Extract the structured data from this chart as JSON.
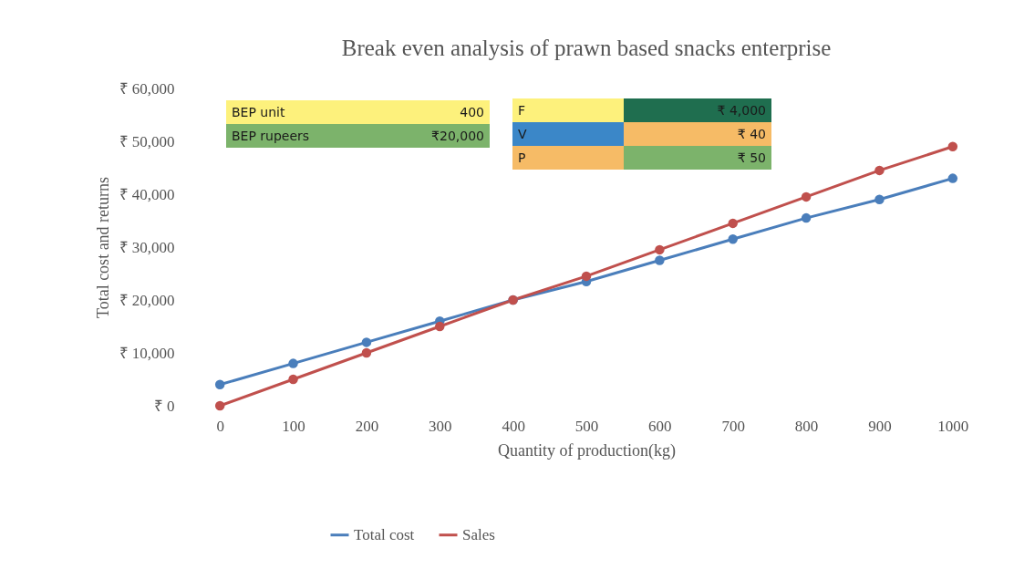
{
  "chart_data": {
    "type": "line",
    "title": "Break even analysis of prawn based snacks enterprise",
    "xlabel": "Quantity of production(kg)",
    "ylabel": "Total cost and returns",
    "categories": [
      "0",
      "100",
      "200",
      "300",
      "400",
      "500",
      "600",
      "700",
      "800",
      "900",
      "1000"
    ],
    "series": [
      {
        "name": "Total cost",
        "color": "#4a7ebb",
        "values": [
          4000,
          8000,
          12000,
          16000,
          20000,
          23500,
          27500,
          31500,
          35500,
          39000,
          43000
        ]
      },
      {
        "name": "Sales",
        "color": "#c0504d",
        "values": [
          0,
          5000,
          10000,
          15000,
          20000,
          24500,
          29500,
          34500,
          39500,
          44500,
          49000
        ]
      }
    ],
    "ylim": [
      0,
      60000
    ],
    "yticks": [
      {
        "value": 0,
        "label": "₹ 0"
      },
      {
        "value": 10000,
        "label": "₹ 10,000"
      },
      {
        "value": 20000,
        "label": "₹ 20,000"
      },
      {
        "value": 30000,
        "label": "₹ 30,000"
      },
      {
        "value": 40000,
        "label": "₹ 40,000"
      },
      {
        "value": 50000,
        "label": "₹ 50,000"
      },
      {
        "value": 60000,
        "label": "₹ 60,000"
      }
    ],
    "grid": false,
    "legend": "bottom",
    "marker": "circle",
    "line_style": "solid",
    "annotations": [
      "BEP unit",
      "400",
      "BEP rupeers",
      "₹20,000",
      "F",
      "₹ 4,000",
      "V",
      "₹ 40",
      "P",
      "₹ 50"
    ]
  }
}
